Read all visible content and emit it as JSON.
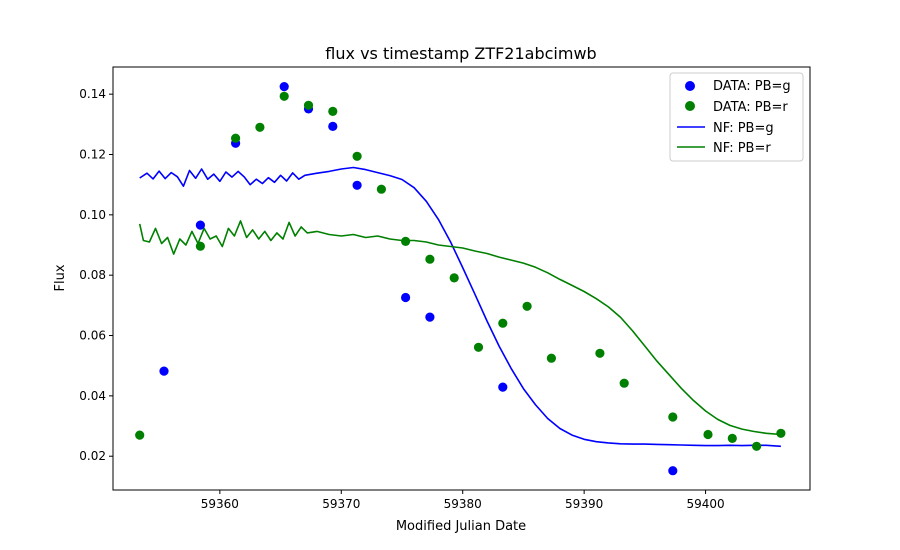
{
  "chart_data": {
    "type": "scatter",
    "title": "flux vs timestamp ZTF21abcimwb",
    "xlabel": "Modified Julian Date",
    "ylabel": "Flux",
    "xlim": [
      59351.2,
      59408.6
    ],
    "ylim": [
      0.0088,
      0.149
    ],
    "xticks": [
      59360,
      59370,
      59380,
      59390,
      59400
    ],
    "yticks": [
      0.02,
      0.04,
      0.06,
      0.08,
      0.1,
      0.12,
      0.14
    ],
    "ytick_labels": [
      "0.02",
      "0.04",
      "0.06",
      "0.08",
      "0.10",
      "0.12",
      "0.14"
    ],
    "grid": false,
    "legend_position": "top-right",
    "colors": {
      "g": "#0000ff",
      "r": "#008000"
    },
    "series": [
      {
        "name": "DATA: PB=g",
        "kind": "scatter",
        "color": "#0000ff",
        "points": [
          [
            59355.4,
            0.0482
          ],
          [
            59358.4,
            0.0966
          ],
          [
            59361.3,
            0.1237
          ],
          [
            59365.3,
            0.1425
          ],
          [
            59367.3,
            0.1351
          ],
          [
            59369.3,
            0.1293
          ],
          [
            59371.3,
            0.1098
          ],
          [
            59375.3,
            0.0726
          ],
          [
            59377.3,
            0.0661
          ],
          [
            59383.3,
            0.0429
          ],
          [
            59397.3,
            0.0152
          ]
        ]
      },
      {
        "name": "DATA: PB=r",
        "kind": "scatter",
        "color": "#008000",
        "points": [
          [
            59353.4,
            0.027
          ],
          [
            59358.4,
            0.0896
          ],
          [
            59361.3,
            0.1254
          ],
          [
            59363.3,
            0.129
          ],
          [
            59365.3,
            0.1393
          ],
          [
            59367.3,
            0.1363
          ],
          [
            59369.3,
            0.1343
          ],
          [
            59371.3,
            0.1194
          ],
          [
            59373.3,
            0.1085
          ],
          [
            59375.3,
            0.0912
          ],
          [
            59377.3,
            0.0853
          ],
          [
            59379.3,
            0.0791
          ],
          [
            59381.3,
            0.0561
          ],
          [
            59383.3,
            0.0641
          ],
          [
            59385.3,
            0.0697
          ],
          [
            59387.3,
            0.0525
          ],
          [
            59391.3,
            0.0541
          ],
          [
            59393.3,
            0.0442
          ],
          [
            59397.3,
            0.033
          ],
          [
            59400.2,
            0.0272
          ],
          [
            59402.2,
            0.0259
          ],
          [
            59404.2,
            0.0233
          ],
          [
            59406.2,
            0.0276
          ]
        ]
      },
      {
        "name": "NF: PB=g",
        "kind": "line",
        "color": "#0000ff",
        "points": [
          [
            59353.4,
            0.1122
          ],
          [
            59354.0,
            0.1138
          ],
          [
            59354.5,
            0.1119
          ],
          [
            59355.0,
            0.1145
          ],
          [
            59355.5,
            0.112
          ],
          [
            59356.0,
            0.114
          ],
          [
            59356.5,
            0.1126
          ],
          [
            59357.0,
            0.1095
          ],
          [
            59357.5,
            0.1147
          ],
          [
            59358.0,
            0.1121
          ],
          [
            59358.5,
            0.1152
          ],
          [
            59359.0,
            0.1118
          ],
          [
            59359.5,
            0.1135
          ],
          [
            59360.0,
            0.1111
          ],
          [
            59360.5,
            0.1142
          ],
          [
            59361.0,
            0.1125
          ],
          [
            59361.5,
            0.1144
          ],
          [
            59362.0,
            0.1126
          ],
          [
            59362.5,
            0.11
          ],
          [
            59363.0,
            0.1118
          ],
          [
            59363.5,
            0.1104
          ],
          [
            59364.0,
            0.1123
          ],
          [
            59364.5,
            0.1108
          ],
          [
            59365.0,
            0.1131
          ],
          [
            59365.5,
            0.1112
          ],
          [
            59366.0,
            0.1139
          ],
          [
            59366.5,
            0.1118
          ],
          [
            59367.0,
            0.1131
          ],
          [
            59368.0,
            0.1138
          ],
          [
            59369.0,
            0.1144
          ],
          [
            59370.0,
            0.1152
          ],
          [
            59371.0,
            0.1157
          ],
          [
            59372.0,
            0.115
          ],
          [
            59373.0,
            0.114
          ],
          [
            59374.0,
            0.113
          ],
          [
            59375.0,
            0.1117
          ],
          [
            59376.0,
            0.109
          ],
          [
            59377.0,
            0.1045
          ],
          [
            59378.0,
            0.0985
          ],
          [
            59379.0,
            0.091
          ],
          [
            59380.0,
            0.0825
          ],
          [
            59381.0,
            0.0737
          ],
          [
            59382.0,
            0.0648
          ],
          [
            59383.0,
            0.0565
          ],
          [
            59384.0,
            0.049
          ],
          [
            59385.0,
            0.0424
          ],
          [
            59386.0,
            0.037
          ],
          [
            59387.0,
            0.0325
          ],
          [
            59388.0,
            0.0292
          ],
          [
            59389.0,
            0.027
          ],
          [
            59390.0,
            0.0256
          ],
          [
            59391.0,
            0.0248
          ],
          [
            59392.0,
            0.0244
          ],
          [
            59393.0,
            0.0241
          ],
          [
            59394.0,
            0.024
          ],
          [
            59395.0,
            0.024
          ],
          [
            59396.0,
            0.0239
          ],
          [
            59397.0,
            0.0238
          ],
          [
            59398.0,
            0.0237
          ],
          [
            59399.0,
            0.0236
          ],
          [
            59400.0,
            0.0235
          ],
          [
            59401.0,
            0.0235
          ],
          [
            59402.0,
            0.0236
          ],
          [
            59403.0,
            0.0235
          ],
          [
            59404.0,
            0.0236
          ],
          [
            59405.0,
            0.0236
          ],
          [
            59406.2,
            0.0233
          ]
        ]
      },
      {
        "name": "NF: PB=r",
        "kind": "line",
        "color": "#008000",
        "points": [
          [
            59353.4,
            0.097
          ],
          [
            59353.7,
            0.0915
          ],
          [
            59354.2,
            0.091
          ],
          [
            59354.7,
            0.0955
          ],
          [
            59355.2,
            0.0905
          ],
          [
            59355.7,
            0.0925
          ],
          [
            59356.2,
            0.087
          ],
          [
            59356.7,
            0.092
          ],
          [
            59357.2,
            0.09
          ],
          [
            59357.7,
            0.0945
          ],
          [
            59358.2,
            0.0905
          ],
          [
            59358.7,
            0.0955
          ],
          [
            59359.2,
            0.092
          ],
          [
            59359.7,
            0.093
          ],
          [
            59360.2,
            0.0895
          ],
          [
            59360.7,
            0.0955
          ],
          [
            59361.2,
            0.093
          ],
          [
            59361.7,
            0.098
          ],
          [
            59362.2,
            0.0925
          ],
          [
            59362.7,
            0.095
          ],
          [
            59363.2,
            0.092
          ],
          [
            59363.7,
            0.0945
          ],
          [
            59364.2,
            0.0915
          ],
          [
            59364.7,
            0.094
          ],
          [
            59365.2,
            0.092
          ],
          [
            59365.7,
            0.0975
          ],
          [
            59366.2,
            0.093
          ],
          [
            59366.7,
            0.096
          ],
          [
            59367.2,
            0.094
          ],
          [
            59368.0,
            0.0945
          ],
          [
            59369.0,
            0.0935
          ],
          [
            59370.0,
            0.093
          ],
          [
            59371.0,
            0.0935
          ],
          [
            59372.0,
            0.0925
          ],
          [
            59373.0,
            0.093
          ],
          [
            59374.0,
            0.092
          ],
          [
            59375.0,
            0.0915
          ],
          [
            59376.0,
            0.0915
          ],
          [
            59377.0,
            0.091
          ],
          [
            59378.0,
            0.09
          ],
          [
            59379.0,
            0.0895
          ],
          [
            59380.0,
            0.089
          ],
          [
            59381.0,
            0.088
          ],
          [
            59382.0,
            0.0872
          ],
          [
            59383.0,
            0.086
          ],
          [
            59384.0,
            0.085
          ],
          [
            59385.0,
            0.084
          ],
          [
            59386.0,
            0.0826
          ],
          [
            59387.0,
            0.0808
          ],
          [
            59388.0,
            0.0786
          ],
          [
            59389.0,
            0.0766
          ],
          [
            59390.0,
            0.0746
          ],
          [
            59391.0,
            0.0722
          ],
          [
            59392.0,
            0.0695
          ],
          [
            59393.0,
            0.066
          ],
          [
            59394.0,
            0.0615
          ],
          [
            59395.0,
            0.0565
          ],
          [
            59396.0,
            0.0515
          ],
          [
            59397.0,
            0.047
          ],
          [
            59398.0,
            0.0425
          ],
          [
            59399.0,
            0.0385
          ],
          [
            59400.0,
            0.035
          ],
          [
            59401.0,
            0.0322
          ],
          [
            59402.0,
            0.0302
          ],
          [
            59403.0,
            0.029
          ],
          [
            59404.0,
            0.0282
          ],
          [
            59405.0,
            0.0276
          ],
          [
            59406.2,
            0.0272
          ]
        ]
      }
    ]
  }
}
